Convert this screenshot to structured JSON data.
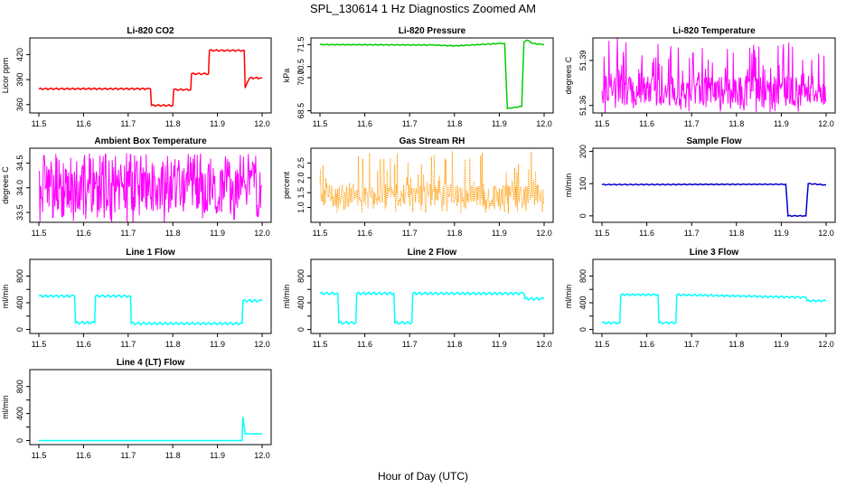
{
  "figure": {
    "title": "SPL_130614  1 Hz Diagnostics Zoomed AM",
    "xlabel": "Hour of Day (UTC)"
  },
  "chart_data": [
    {
      "type": "line",
      "title": "Li-820 CO2",
      "ylabel": "Licor ppm",
      "color": "#ff0000",
      "xlim": [
        11.5,
        12.0
      ],
      "ylim": [
        350,
        440
      ],
      "xticks": [
        "11.5",
        "11.6",
        "11.7",
        "11.8",
        "11.9",
        "12.0"
      ],
      "yticks": [
        360,
        390,
        420
      ],
      "ytick_labels": [
        "360",
        "390",
        "420"
      ],
      "points": [
        [
          11.5,
          379
        ],
        [
          11.75,
          379
        ],
        [
          11.752,
          359
        ],
        [
          11.8,
          359
        ],
        [
          11.802,
          378
        ],
        [
          11.84,
          378
        ],
        [
          11.842,
          397
        ],
        [
          11.88,
          397
        ],
        [
          11.882,
          425
        ],
        [
          11.96,
          425
        ],
        [
          11.962,
          380
        ],
        [
          11.972,
          392
        ],
        [
          12.0,
          392
        ]
      ],
      "noise": 1
    },
    {
      "type": "line",
      "title": "Li-820 Pressure",
      "ylabel": "kPa",
      "color": "#00cc00",
      "xlim": [
        11.5,
        12.0
      ],
      "ylim": [
        68.4,
        71.8
      ],
      "xticks": [
        "11.5",
        "11.6",
        "11.7",
        "11.8",
        "11.9",
        "12.0"
      ],
      "yticks": [
        68.5,
        70.0,
        70.5,
        71.5
      ],
      "ytick_labels": [
        "68.5",
        "70.0",
        "70.5",
        "71.5"
      ],
      "points": [
        [
          11.5,
          71.5
        ],
        [
          11.75,
          71.48
        ],
        [
          11.8,
          71.44
        ],
        [
          11.9,
          71.55
        ],
        [
          11.912,
          71.55
        ],
        [
          11.918,
          68.6
        ],
        [
          11.95,
          68.7
        ],
        [
          11.955,
          71.6
        ],
        [
          11.962,
          71.7
        ],
        [
          11.975,
          71.55
        ],
        [
          12.0,
          71.5
        ]
      ],
      "noise": 0.02
    },
    {
      "type": "line",
      "title": "Li-820 Temperature",
      "ylabel": "degrees C",
      "color": "#ff00ff",
      "xlim": [
        11.5,
        12.0
      ],
      "ylim": [
        51.355,
        51.405
      ],
      "xticks": [
        "11.5",
        "11.6",
        "11.7",
        "11.8",
        "11.9",
        "12.0"
      ],
      "yticks": [
        51.36,
        51.39
      ],
      "ytick_labels": [
        "51.36",
        "51.39"
      ],
      "points": [
        [
          11.5,
          51.36
        ],
        [
          12.0,
          51.36
        ]
      ],
      "noise": 0,
      "band": [
        51.36,
        51.38
      ],
      "spike_to": 51.405
    },
    {
      "type": "line",
      "title": "Ambient Box Temperature",
      "ylabel": "degrees C",
      "color": "#ff00ff",
      "xlim": [
        11.5,
        12.0
      ],
      "ylim": [
        33.3,
        34.8
      ],
      "xticks": [
        "11.5",
        "11.6",
        "11.7",
        "11.8",
        "11.9",
        "12.0"
      ],
      "yticks": [
        33.5,
        34.0,
        34.5
      ],
      "ytick_labels": [
        "33.5",
        "34.0",
        "34.5"
      ],
      "points": [
        [
          11.5,
          34.0
        ],
        [
          12.0,
          34.0
        ]
      ],
      "noise": 0,
      "band": [
        33.5,
        34.5
      ],
      "spike_to": 34.7
    },
    {
      "type": "scatter",
      "title": "Gas Stream RH",
      "ylabel": "percent",
      "color": "#ff9900",
      "xlim": [
        11.5,
        12.0
      ],
      "ylim": [
        0.5,
        3.0
      ],
      "xticks": [
        "11.5",
        "11.6",
        "11.7",
        "11.8",
        "11.9",
        "12.0"
      ],
      "yticks": [
        1.0,
        1.5,
        2.0,
        2.5
      ],
      "ytick_labels": [
        "1.0",
        "1.5",
        "2.0",
        "2.5"
      ],
      "points": [
        [
          11.5,
          1.4
        ],
        [
          12.0,
          1.4
        ]
      ],
      "noise": 0,
      "band": [
        1.0,
        1.8
      ],
      "spike_to": 2.9
    },
    {
      "type": "line",
      "title": "Sample Flow",
      "ylabel": "ml/min",
      "color": "#0000cc",
      "xlim": [
        11.5,
        12.0
      ],
      "ylim": [
        -20,
        210
      ],
      "xticks": [
        "11.5",
        "11.6",
        "11.7",
        "11.8",
        "11.9",
        "12.0"
      ],
      "yticks": [
        0,
        100,
        200
      ],
      "ytick_labels": [
        "0",
        "100",
        "200"
      ],
      "points": [
        [
          11.5,
          97
        ],
        [
          11.91,
          98
        ],
        [
          11.915,
          0
        ],
        [
          11.955,
          0
        ],
        [
          11.96,
          100
        ],
        [
          12.0,
          96
        ]
      ],
      "noise": 1.5
    },
    {
      "type": "line",
      "title": "Line 1 Flow",
      "ylabel": "ml/min",
      "color": "#00ffff",
      "xlim": [
        11.5,
        12.0
      ],
      "ylim": [
        -60,
        1050
      ],
      "xticks": [
        "11.5",
        "11.6",
        "11.7",
        "11.8",
        "11.9",
        "12.0"
      ],
      "yticks": [
        0,
        200,
        400,
        600,
        800
      ],
      "ytick_labels": [
        "0",
        "400",
        "800"
      ],
      "points": [
        [
          11.5,
          500
        ],
        [
          11.58,
          500
        ],
        [
          11.582,
          100
        ],
        [
          11.625,
          100
        ],
        [
          11.627,
          500
        ],
        [
          11.705,
          500
        ],
        [
          11.707,
          90
        ],
        [
          11.955,
          90
        ],
        [
          11.957,
          430
        ],
        [
          12.0,
          430
        ]
      ],
      "noise": 20
    },
    {
      "type": "line",
      "title": "Line 2 Flow",
      "ylabel": "ml/min",
      "color": "#00ffff",
      "xlim": [
        11.5,
        12.0
      ],
      "ylim": [
        -60,
        1050
      ],
      "xticks": [
        "11.5",
        "11.6",
        "11.7",
        "11.8",
        "11.9",
        "12.0"
      ],
      "yticks": [
        0,
        200,
        400,
        600,
        800
      ],
      "ytick_labels": [
        "0",
        "400",
        "800"
      ],
      "points": [
        [
          11.5,
          540
        ],
        [
          11.54,
          540
        ],
        [
          11.542,
          100
        ],
        [
          11.58,
          100
        ],
        [
          11.582,
          540
        ],
        [
          11.665,
          540
        ],
        [
          11.667,
          100
        ],
        [
          11.705,
          100
        ],
        [
          11.707,
          540
        ],
        [
          11.955,
          540
        ],
        [
          11.957,
          460
        ],
        [
          12.0,
          460
        ]
      ],
      "noise": 20
    },
    {
      "type": "line",
      "title": "Line 3 Flow",
      "ylabel": "ml/min",
      "color": "#00ffff",
      "xlim": [
        11.5,
        12.0
      ],
      "ylim": [
        -60,
        1050
      ],
      "xticks": [
        "11.5",
        "11.6",
        "11.7",
        "11.8",
        "11.9",
        "12.0"
      ],
      "yticks": [
        0,
        200,
        400,
        600,
        800
      ],
      "ytick_labels": [
        "0",
        "400",
        "800"
      ],
      "points": [
        [
          11.5,
          100
        ],
        [
          11.54,
          100
        ],
        [
          11.542,
          520
        ],
        [
          11.625,
          520
        ],
        [
          11.627,
          100
        ],
        [
          11.665,
          100
        ],
        [
          11.667,
          520
        ],
        [
          11.955,
          480
        ],
        [
          11.957,
          430
        ],
        [
          12.0,
          430
        ]
      ],
      "noise": 15
    },
    {
      "type": "line",
      "title": "Line 4 (LT) Flow",
      "ylabel": "ml/min",
      "color": "#00ffff",
      "xlim": [
        11.5,
        12.0
      ],
      "ylim": [
        -60,
        1050
      ],
      "xticks": [
        "11.5",
        "11.6",
        "11.7",
        "11.8",
        "11.9",
        "12.0"
      ],
      "yticks": [
        0,
        200,
        400,
        600,
        800
      ],
      "ytick_labels": [
        "0",
        "400",
        "800"
      ],
      "points": [
        [
          11.5,
          0
        ],
        [
          11.955,
          0
        ],
        [
          11.957,
          350
        ],
        [
          11.962,
          100
        ],
        [
          12.0,
          100
        ]
      ],
      "noise": 0
    }
  ]
}
